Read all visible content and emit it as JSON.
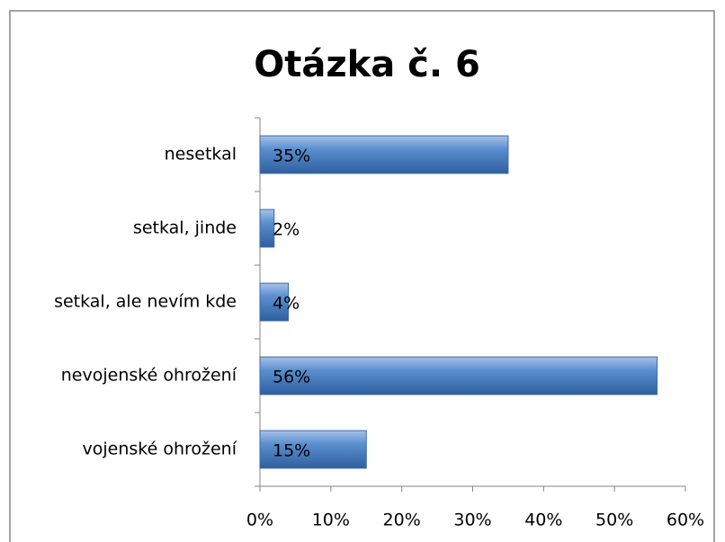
{
  "chart_data": {
    "type": "barh",
    "title": "Otázka č. 6",
    "categories": [
      "nesetkal",
      "setkal, jinde",
      "setkal, ale nevím kde",
      "nevojenské ohrožení",
      "vojenské ohrožení"
    ],
    "values": [
      35,
      2,
      4,
      56,
      15
    ],
    "value_labels": [
      "35%",
      "2%",
      "4%",
      "56%",
      "15%"
    ],
    "color": "#4f81bd",
    "xlim": [
      0,
      60
    ],
    "xticks": [
      {
        "value": 0,
        "label": "0%"
      },
      {
        "value": 10,
        "label": "10%"
      },
      {
        "value": 20,
        "label": "20%"
      },
      {
        "value": 30,
        "label": "30%"
      },
      {
        "value": 40,
        "label": "40%"
      },
      {
        "value": 50,
        "label": "50%"
      },
      {
        "value": 60,
        "label": "60%"
      }
    ]
  }
}
